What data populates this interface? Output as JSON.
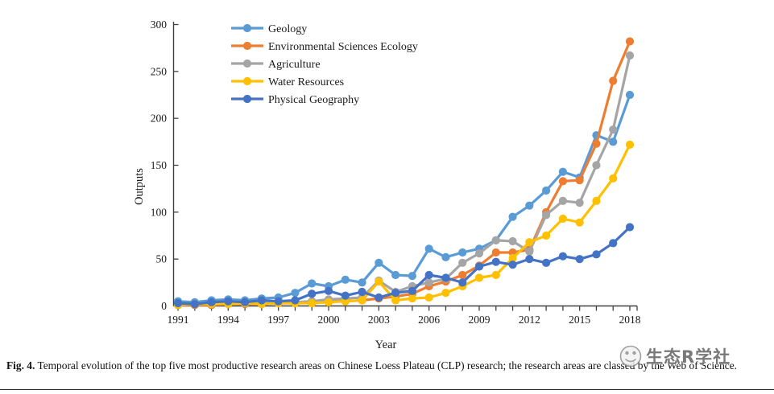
{
  "figure": {
    "caption_label": "Fig. 4.",
    "caption_text": "Temporal evolution of the top five most productive research areas on Chinese Loess Plateau (CLP) research; the research areas are classed by the Web of Science."
  },
  "watermark": {
    "text": "生态R学社",
    "icon": "ecology-society-logo",
    "color": "#696969"
  },
  "chart_data": {
    "type": "line",
    "title": "",
    "xlabel": "Year",
    "ylabel": "Outputs",
    "ylim": [
      0,
      300
    ],
    "y_ticks": [
      0,
      50,
      100,
      150,
      200,
      250,
      300
    ],
    "x": [
      1991,
      1992,
      1993,
      1994,
      1995,
      1996,
      1997,
      1998,
      1999,
      2000,
      2001,
      2002,
      2003,
      2004,
      2005,
      2006,
      2007,
      2008,
      2009,
      2010,
      2011,
      2012,
      2013,
      2014,
      2015,
      2016,
      2017,
      2018
    ],
    "x_tick_labels": [
      1991,
      1994,
      1997,
      2000,
      2003,
      2006,
      2009,
      2012,
      2015,
      2018
    ],
    "grid": false,
    "legend_position": "top-left-inside",
    "marker": "circle",
    "axis_color": "#404040",
    "text_color": "#1a1a1a",
    "series": [
      {
        "name": "Geology",
        "color": "#5B9BD5",
        "values": [
          5,
          4,
          6,
          7,
          6,
          8,
          9,
          14,
          24,
          21,
          28,
          25,
          46,
          33,
          32,
          61,
          52,
          57,
          61,
          70,
          95,
          107,
          123,
          143,
          137,
          182,
          175,
          225
        ]
      },
      {
        "name": "Environmental Sciences Ecology",
        "color": "#ED7D31",
        "values": [
          1,
          1,
          1,
          2,
          2,
          2,
          3,
          3,
          4,
          5,
          5,
          6,
          8,
          10,
          13,
          21,
          26,
          33,
          43,
          57,
          57,
          60,
          100,
          133,
          134,
          173,
          240,
          282
        ]
      },
      {
        "name": "Agriculture",
        "color": "#A5A5A5",
        "values": [
          2,
          2,
          2,
          3,
          3,
          3,
          4,
          4,
          5,
          7,
          8,
          9,
          27,
          15,
          21,
          25,
          29,
          46,
          56,
          70,
          69,
          58,
          97,
          112,
          110,
          150,
          188,
          267
        ]
      },
      {
        "name": "Water Resources",
        "color": "#FFC000",
        "values": [
          1,
          2,
          2,
          2,
          3,
          2,
          3,
          3,
          3,
          4,
          5,
          6,
          26,
          6,
          8,
          9,
          14,
          21,
          30,
          33,
          51,
          68,
          75,
          93,
          89,
          112,
          136,
          172
        ]
      },
      {
        "name": "Physical Geography",
        "color": "#4472C4",
        "values": [
          3,
          2,
          4,
          5,
          4,
          6,
          5,
          6,
          13,
          16,
          11,
          15,
          9,
          14,
          16,
          33,
          30,
          25,
          42,
          47,
          44,
          50,
          46,
          53,
          50,
          55,
          67,
          84
        ]
      }
    ]
  }
}
